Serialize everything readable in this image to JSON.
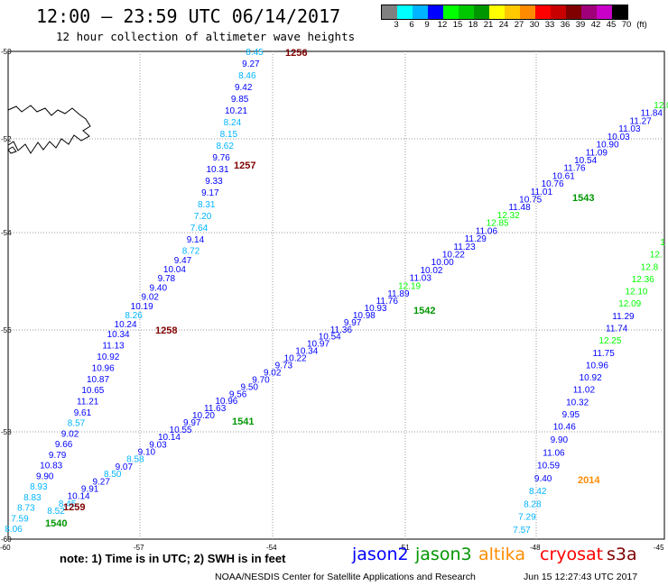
{
  "header": {
    "title": "12:00 – 23:59 UTC 06/14/2017",
    "subtitle": "12 hour collection of altimeter wave heights"
  },
  "legend": {
    "colors": [
      "#808080",
      "#00ffff",
      "#00b4ff",
      "#0000ff",
      "#00ff00",
      "#00c800",
      "#009600",
      "#ffff00",
      "#ffc800",
      "#ff8c00",
      "#ff0000",
      "#c80000",
      "#800000",
      "#a0007a",
      "#c800c8",
      "#000000"
    ],
    "labels": [
      "3",
      "6",
      "9",
      "12",
      "15",
      "18",
      "21",
      "24",
      "27",
      "30",
      "33",
      "36",
      "39",
      "42",
      "45",
      "70",
      "(ft)"
    ]
  },
  "axes": {
    "lat_labels": [
      "-50",
      "-52",
      "-54",
      "-56",
      "-58",
      "-60"
    ],
    "lon_labels": [
      "-60",
      "-57",
      "-54",
      "-51",
      "-48",
      "-45"
    ]
  },
  "tracks": [
    {
      "id": "1256-1258-1259",
      "labels": [
        {
          "text": "1256",
          "color": "#800000"
        },
        {
          "text": "1257",
          "color": "#800000"
        },
        {
          "text": "1258",
          "color": "#800000"
        },
        {
          "text": "1259",
          "color": "#800000"
        }
      ],
      "readings": [
        {
          "v": "8.45",
          "c": "#00b4ff"
        },
        {
          "v": "9.27",
          "c": "#0000ff"
        },
        {
          "v": "8.46",
          "c": "#00b4ff"
        },
        {
          "v": "9.42",
          "c": "#0000ff"
        },
        {
          "v": "9.85",
          "c": "#0000ff"
        },
        {
          "v": "10.21",
          "c": "#0000ff"
        },
        {
          "v": "8.24",
          "c": "#00b4ff"
        },
        {
          "v": "8.15",
          "c": "#00b4ff"
        },
        {
          "v": "8.62",
          "c": "#00b4ff"
        },
        {
          "v": "9.76",
          "c": "#0000ff"
        },
        {
          "v": "10.31",
          "c": "#0000ff"
        },
        {
          "v": "9.33",
          "c": "#0000ff"
        },
        {
          "v": "9.17",
          "c": "#0000ff"
        },
        {
          "v": "8.31",
          "c": "#00b4ff"
        },
        {
          "v": "7.20",
          "c": "#00b4ff"
        },
        {
          "v": "7.64",
          "c": "#00b4ff"
        },
        {
          "v": "9.14",
          "c": "#0000ff"
        },
        {
          "v": "8.72",
          "c": "#00b4ff"
        },
        {
          "v": "9.47",
          "c": "#0000ff"
        },
        {
          "v": "10.04",
          "c": "#0000ff"
        },
        {
          "v": "9.78",
          "c": "#0000ff"
        },
        {
          "v": "9.40",
          "c": "#0000ff"
        },
        {
          "v": "9.02",
          "c": "#0000ff"
        },
        {
          "v": "10.19",
          "c": "#0000ff"
        },
        {
          "v": "8.26",
          "c": "#00b4ff"
        },
        {
          "v": "10.24",
          "c": "#0000ff"
        },
        {
          "v": "10.34",
          "c": "#0000ff"
        },
        {
          "v": "11.13",
          "c": "#0000ff"
        },
        {
          "v": "10.92",
          "c": "#0000ff"
        },
        {
          "v": "10.96",
          "c": "#0000ff"
        },
        {
          "v": "10.87",
          "c": "#0000ff"
        },
        {
          "v": "10.65",
          "c": "#0000ff"
        },
        {
          "v": "11.21",
          "c": "#0000ff"
        },
        {
          "v": "9.61",
          "c": "#0000ff"
        },
        {
          "v": "8.57",
          "c": "#00b4ff"
        },
        {
          "v": "9.02",
          "c": "#0000ff"
        },
        {
          "v": "9.66",
          "c": "#0000ff"
        },
        {
          "v": "9.79",
          "c": "#0000ff"
        },
        {
          "v": "10.83",
          "c": "#0000ff"
        },
        {
          "v": "9.90",
          "c": "#0000ff"
        },
        {
          "v": "8.93",
          "c": "#00b4ff"
        },
        {
          "v": "8.83",
          "c": "#00b4ff"
        },
        {
          "v": "8.73",
          "c": "#00b4ff"
        },
        {
          "v": "7.59",
          "c": "#00b4ff"
        },
        {
          "v": "8.06",
          "c": "#00b4ff"
        }
      ]
    },
    {
      "id": "1540-1543",
      "labels": [
        {
          "text": "1540",
          "color": "#009600"
        },
        {
          "text": "1541",
          "color": "#009600"
        },
        {
          "text": "1542",
          "color": "#009600"
        },
        {
          "text": "1543",
          "color": "#009600"
        }
      ],
      "readings": [
        {
          "v": "8.52",
          "c": "#00b4ff"
        },
        {
          "v": "8.45",
          "c": "#00b4ff"
        },
        {
          "v": "10.14",
          "c": "#0000ff"
        },
        {
          "v": "9.91",
          "c": "#0000ff"
        },
        {
          "v": "9.27",
          "c": "#0000ff"
        },
        {
          "v": "8.50",
          "c": "#00b4ff"
        },
        {
          "v": "9.07",
          "c": "#0000ff"
        },
        {
          "v": "8.58",
          "c": "#00b4ff"
        },
        {
          "v": "9.10",
          "c": "#0000ff"
        },
        {
          "v": "9.03",
          "c": "#0000ff"
        },
        {
          "v": "10.14",
          "c": "#0000ff"
        },
        {
          "v": "10.55",
          "c": "#0000ff"
        },
        {
          "v": "9.97",
          "c": "#0000ff"
        },
        {
          "v": "10.20",
          "c": "#0000ff"
        },
        {
          "v": "11.63",
          "c": "#0000ff"
        },
        {
          "v": "10.96",
          "c": "#0000ff"
        },
        {
          "v": "9.56",
          "c": "#0000ff"
        },
        {
          "v": "9.50",
          "c": "#0000ff"
        },
        {
          "v": "9.70",
          "c": "#0000ff"
        },
        {
          "v": "9.02",
          "c": "#0000ff"
        },
        {
          "v": "9.73",
          "c": "#0000ff"
        },
        {
          "v": "10.22",
          "c": "#0000ff"
        },
        {
          "v": "10.34",
          "c": "#0000ff"
        },
        {
          "v": "10.97",
          "c": "#0000ff"
        },
        {
          "v": "10.54",
          "c": "#0000ff"
        },
        {
          "v": "11.36",
          "c": "#0000ff"
        },
        {
          "v": "9.97",
          "c": "#0000ff"
        },
        {
          "v": "10.98",
          "c": "#0000ff"
        },
        {
          "v": "10.93",
          "c": "#0000ff"
        },
        {
          "v": "11.76",
          "c": "#0000ff"
        },
        {
          "v": "11.89",
          "c": "#0000ff"
        },
        {
          "v": "12.19",
          "c": "#00ff00"
        },
        {
          "v": "11.03",
          "c": "#0000ff"
        },
        {
          "v": "10.02",
          "c": "#0000ff"
        },
        {
          "v": "10.00",
          "c": "#0000ff"
        },
        {
          "v": "10.22",
          "c": "#0000ff"
        },
        {
          "v": "11.23",
          "c": "#0000ff"
        },
        {
          "v": "11.29",
          "c": "#0000ff"
        },
        {
          "v": "11.06",
          "c": "#0000ff"
        },
        {
          "v": "12.85",
          "c": "#00ff00"
        },
        {
          "v": "12.32",
          "c": "#00ff00"
        },
        {
          "v": "11.48",
          "c": "#0000ff"
        },
        {
          "v": "10.75",
          "c": "#0000ff"
        },
        {
          "v": "11.01",
          "c": "#0000ff"
        },
        {
          "v": "10.76",
          "c": "#0000ff"
        },
        {
          "v": "10.61",
          "c": "#0000ff"
        },
        {
          "v": "11.76",
          "c": "#0000ff"
        },
        {
          "v": "10.54",
          "c": "#0000ff"
        },
        {
          "v": "11.09",
          "c": "#0000ff"
        },
        {
          "v": "10.90",
          "c": "#0000ff"
        },
        {
          "v": "10.03",
          "c": "#0000ff"
        },
        {
          "v": "11.03",
          "c": "#0000ff"
        },
        {
          "v": "11.27",
          "c": "#0000ff"
        },
        {
          "v": "11.84",
          "c": "#0000ff"
        },
        {
          "v": "12.0",
          "c": "#00ff00"
        }
      ]
    },
    {
      "id": "2014",
      "labels": [
        {
          "text": "2014",
          "color": "#ff8c00"
        }
      ],
      "readings": [
        {
          "v": "7.57",
          "c": "#00b4ff"
        },
        {
          "v": "7.29",
          "c": "#00b4ff"
        },
        {
          "v": "8.28",
          "c": "#00b4ff"
        },
        {
          "v": "8.42",
          "c": "#00b4ff"
        },
        {
          "v": "9.40",
          "c": "#0000ff"
        },
        {
          "v": "10.59",
          "c": "#0000ff"
        },
        {
          "v": "11.06",
          "c": "#0000ff"
        },
        {
          "v": "9.90",
          "c": "#0000ff"
        },
        {
          "v": "10.46",
          "c": "#0000ff"
        },
        {
          "v": "9.95",
          "c": "#0000ff"
        },
        {
          "v": "10.32",
          "c": "#0000ff"
        },
        {
          "v": "11.02",
          "c": "#0000ff"
        },
        {
          "v": "10.92",
          "c": "#0000ff"
        },
        {
          "v": "10.96",
          "c": "#0000ff"
        },
        {
          "v": "11.75",
          "c": "#0000ff"
        },
        {
          "v": "12.25",
          "c": "#00ff00"
        },
        {
          "v": "11.74",
          "c": "#0000ff"
        },
        {
          "v": "11.29",
          "c": "#0000ff"
        },
        {
          "v": "12.09",
          "c": "#00ff00"
        },
        {
          "v": "12.10",
          "c": "#00ff00"
        },
        {
          "v": "12.36",
          "c": "#00ff00"
        },
        {
          "v": "12.8",
          "c": "#00ff00"
        },
        {
          "v": "12.",
          "c": "#00ff00"
        },
        {
          "v": "1",
          "c": "#00ff00"
        }
      ]
    }
  ],
  "footer": {
    "note": "note: 1) Time is in UTC; 2) SWH is in feet",
    "satellites": [
      {
        "name": "jason2",
        "color": "#0000ff"
      },
      {
        "name": "jason3",
        "color": "#009600"
      },
      {
        "name": "altika",
        "color": "#ff8c00"
      },
      {
        "name": "cryosat",
        "color": "#ff0000"
      },
      {
        "name": "s3a",
        "color": "#800000"
      }
    ],
    "credit": "NOAA/NESDIS Center for Satellite Applications and Research",
    "timestamp": "Jun 15 12:27:43 UTC 2017"
  }
}
